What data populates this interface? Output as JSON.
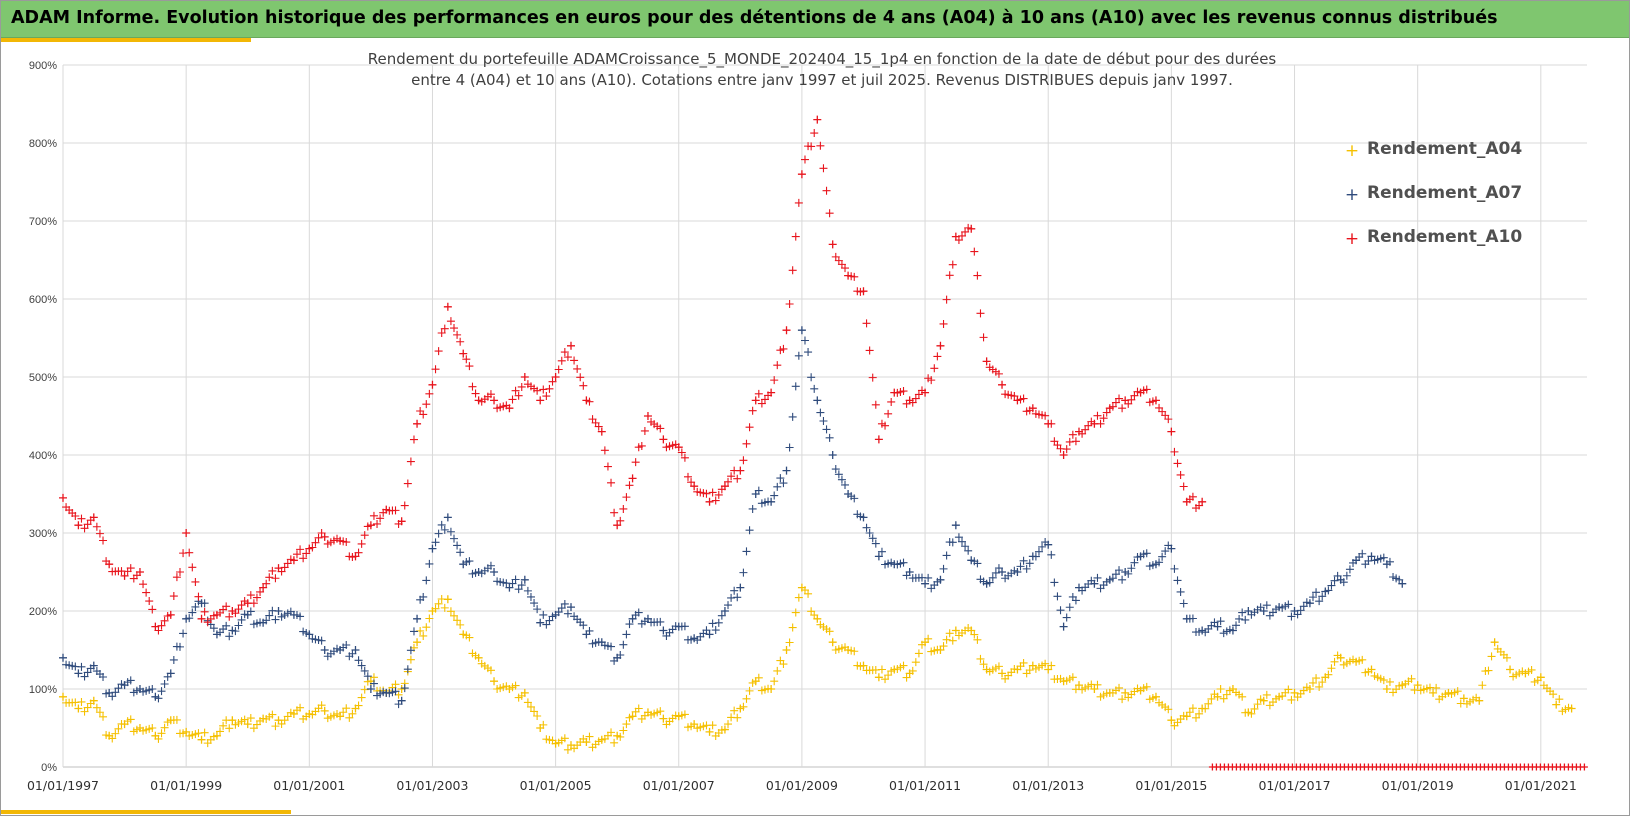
{
  "banner": {
    "title": "ADAM Informe. Evolution historique des performances en euros pour des détentions de 4 ans (A04) à 10 ans (A10) avec les revenus connus distribués"
  },
  "colors": {
    "banner": "#7fc66f",
    "accent": "#f2b705",
    "A04": "#f5c000",
    "A07": "#2f4b7c",
    "A10": "#e8141c"
  },
  "chart_data": {
    "type": "scatter",
    "marker": "plus",
    "title_lines": [
      "Rendement du portefeuille ADAMCroissance_5_MONDE_202404_15_1p4  en fonction de la date de début pour des durées",
      "entre 4 (A04) et 10 ans (A10). Cotations entre janv 1997 et juil 2025. Revenus DISTRIBUES depuis janv 1997."
    ],
    "xlim": [
      "1997-01-01",
      "2021-10-01"
    ],
    "ylim": [
      0,
      900
    ],
    "y_unit": "%",
    "y_ticks": [
      "0%",
      "100%",
      "200%",
      "300%",
      "400%",
      "500%",
      "600%",
      "700%",
      "800%",
      "900%"
    ],
    "x_tick_labels": [
      "01/01/1997",
      "01/01/1999",
      "01/01/2001",
      "01/01/2003",
      "01/01/2005",
      "01/01/2007",
      "01/01/2009",
      "01/01/2011",
      "01/01/2013",
      "01/01/2015",
      "01/01/2017",
      "01/01/2019",
      "01/01/2021"
    ],
    "grid": true,
    "legend_position": "top-right",
    "series": [
      {
        "name": "Rendement_A04",
        "points": [
          [
            "1997-01",
            90
          ],
          [
            "1997-04",
            75
          ],
          [
            "1997-07",
            85
          ],
          [
            "1997-10",
            40
          ],
          [
            "1998-01",
            55
          ],
          [
            "1998-04",
            50
          ],
          [
            "1998-07",
            40
          ],
          [
            "1998-10",
            60
          ],
          [
            "1999-01",
            45
          ],
          [
            "1999-04",
            35
          ],
          [
            "1999-07",
            40
          ],
          [
            "1999-10",
            60
          ],
          [
            "2000-01",
            55
          ],
          [
            "2000-04",
            62
          ],
          [
            "2000-07",
            60
          ],
          [
            "2000-10",
            68
          ],
          [
            "2001-01",
            68
          ],
          [
            "2001-04",
            72
          ],
          [
            "2001-07",
            65
          ],
          [
            "2001-10",
            75
          ],
          [
            "2002-01",
            110
          ],
          [
            "2002-04",
            95
          ],
          [
            "2002-07",
            100
          ],
          [
            "2002-10",
            160
          ],
          [
            "2003-01",
            200
          ],
          [
            "2003-04",
            215
          ],
          [
            "2003-07",
            170
          ],
          [
            "2003-10",
            140
          ],
          [
            "2004-01",
            110
          ],
          [
            "2004-04",
            100
          ],
          [
            "2004-07",
            95
          ],
          [
            "2004-10",
            50
          ],
          [
            "2005-01",
            30
          ],
          [
            "2005-04",
            28
          ],
          [
            "2005-07",
            32
          ],
          [
            "2005-10",
            35
          ],
          [
            "2006-01",
            40
          ],
          [
            "2006-04",
            65
          ],
          [
            "2006-07",
            70
          ],
          [
            "2006-10",
            62
          ],
          [
            "2007-01",
            65
          ],
          [
            "2007-04",
            55
          ],
          [
            "2007-07",
            45
          ],
          [
            "2007-10",
            48
          ],
          [
            "2008-01",
            75
          ],
          [
            "2008-04",
            110
          ],
          [
            "2008-07",
            100
          ],
          [
            "2008-10",
            150
          ],
          [
            "2009-01",
            230
          ],
          [
            "2009-04",
            190
          ],
          [
            "2009-07",
            160
          ],
          [
            "2009-10",
            150
          ],
          [
            "2010-01",
            130
          ],
          [
            "2010-04",
            115
          ],
          [
            "2010-07",
            125
          ],
          [
            "2010-10",
            120
          ],
          [
            "2011-01",
            160
          ],
          [
            "2011-04",
            150
          ],
          [
            "2011-07",
            175
          ],
          [
            "2011-10",
            175
          ],
          [
            "2012-01",
            125
          ],
          [
            "2012-04",
            120
          ],
          [
            "2012-07",
            125
          ],
          [
            "2012-10",
            130
          ],
          [
            "2013-01",
            125
          ],
          [
            "2013-04",
            110
          ],
          [
            "2013-07",
            105
          ],
          [
            "2013-10",
            100
          ],
          [
            "2014-01",
            95
          ],
          [
            "2014-04",
            95
          ],
          [
            "2014-07",
            98
          ],
          [
            "2014-10",
            90
          ],
          [
            "2015-01",
            60
          ],
          [
            "2015-04",
            65
          ],
          [
            "2015-07",
            75
          ],
          [
            "2015-10",
            90
          ],
          [
            "2016-01",
            100
          ],
          [
            "2016-04",
            70
          ],
          [
            "2016-07",
            85
          ],
          [
            "2016-10",
            90
          ],
          [
            "2017-01",
            95
          ],
          [
            "2017-04",
            100
          ],
          [
            "2017-07",
            115
          ],
          [
            "2017-10",
            140
          ],
          [
            "2018-01",
            135
          ],
          [
            "2018-04",
            125
          ],
          [
            "2018-07",
            100
          ],
          [
            "2018-10",
            105
          ],
          [
            "2019-01",
            105
          ],
          [
            "2019-04",
            95
          ],
          [
            "2019-07",
            95
          ],
          [
            "2019-10",
            88
          ],
          [
            "2020-01",
            85
          ],
          [
            "2020-04",
            160
          ],
          [
            "2020-07",
            125
          ],
          [
            "2020-10",
            120
          ],
          [
            "2021-01",
            115
          ],
          [
            "2021-04",
            80
          ],
          [
            "2021-07",
            75
          ]
        ]
      },
      {
        "name": "Rendement_A07",
        "points": [
          [
            "1997-01",
            140
          ],
          [
            "1997-04",
            120
          ],
          [
            "1997-07",
            130
          ],
          [
            "1997-10",
            95
          ],
          [
            "1998-01",
            105
          ],
          [
            "1998-04",
            100
          ],
          [
            "1998-07",
            90
          ],
          [
            "1998-10",
            120
          ],
          [
            "1999-01",
            190
          ],
          [
            "1999-04",
            210
          ],
          [
            "1999-07",
            170
          ],
          [
            "1999-10",
            175
          ],
          [
            "2000-01",
            195
          ],
          [
            "2000-04",
            185
          ],
          [
            "2000-07",
            200
          ],
          [
            "2000-10",
            195
          ],
          [
            "2001-01",
            170
          ],
          [
            "2001-04",
            150
          ],
          [
            "2001-07",
            150
          ],
          [
            "2001-10",
            150
          ],
          [
            "2002-01",
            100
          ],
          [
            "2002-04",
            95
          ],
          [
            "2002-07",
            85
          ],
          [
            "2002-10",
            190
          ],
          [
            "2003-01",
            280
          ],
          [
            "2003-04",
            320
          ],
          [
            "2003-07",
            260
          ],
          [
            "2003-10",
            250
          ],
          [
            "2004-01",
            250
          ],
          [
            "2004-04",
            230
          ],
          [
            "2004-07",
            240
          ],
          [
            "2004-10",
            185
          ],
          [
            "2005-01",
            195
          ],
          [
            "2005-04",
            205
          ],
          [
            "2005-07",
            170
          ],
          [
            "2005-10",
            160
          ],
          [
            "2006-01",
            140
          ],
          [
            "2006-04",
            190
          ],
          [
            "2006-07",
            190
          ],
          [
            "2006-10",
            175
          ],
          [
            "2007-01",
            180
          ],
          [
            "2007-04",
            165
          ],
          [
            "2007-07",
            170
          ],
          [
            "2007-10",
            200
          ],
          [
            "2008-01",
            230
          ],
          [
            "2008-04",
            350
          ],
          [
            "2008-07",
            340
          ],
          [
            "2008-10",
            380
          ],
          [
            "2009-01",
            560
          ],
          [
            "2009-04",
            470
          ],
          [
            "2009-07",
            400
          ],
          [
            "2009-10",
            350
          ],
          [
            "2010-01",
            320
          ],
          [
            "2010-04",
            270
          ],
          [
            "2010-07",
            260
          ],
          [
            "2010-10",
            250
          ],
          [
            "2011-01",
            235
          ],
          [
            "2011-04",
            240
          ],
          [
            "2011-07",
            310
          ],
          [
            "2011-10",
            265
          ],
          [
            "2012-01",
            235
          ],
          [
            "2012-04",
            250
          ],
          [
            "2012-07",
            250
          ],
          [
            "2012-10",
            270
          ],
          [
            "2013-01",
            285
          ],
          [
            "2013-04",
            180
          ],
          [
            "2013-07",
            230
          ],
          [
            "2013-10",
            235
          ],
          [
            "2014-01",
            240
          ],
          [
            "2014-04",
            250
          ],
          [
            "2014-07",
            270
          ],
          [
            "2014-10",
            260
          ],
          [
            "2015-01",
            280
          ],
          [
            "2015-04",
            190
          ],
          [
            "2015-07",
            175
          ],
          [
            "2015-10",
            180
          ],
          [
            "2016-01",
            175
          ],
          [
            "2016-04",
            200
          ],
          [
            "2016-07",
            200
          ],
          [
            "2016-10",
            205
          ],
          [
            "2017-01",
            200
          ],
          [
            "2017-04",
            210
          ],
          [
            "2017-07",
            225
          ],
          [
            "2017-10",
            240
          ],
          [
            "2018-01",
            265
          ],
          [
            "2018-04",
            270
          ],
          [
            "2018-07",
            260
          ],
          [
            "2018-10",
            235
          ]
        ]
      },
      {
        "name": "Rendement_A10",
        "points": [
          [
            "1997-01",
            345
          ],
          [
            "1997-04",
            310
          ],
          [
            "1997-07",
            320
          ],
          [
            "1997-10",
            260
          ],
          [
            "1998-01",
            245
          ],
          [
            "1998-04",
            250
          ],
          [
            "1998-07",
            180
          ],
          [
            "1998-10",
            195
          ],
          [
            "1999-01",
            300
          ],
          [
            "1999-04",
            190
          ],
          [
            "1999-07",
            195
          ],
          [
            "1999-10",
            200
          ],
          [
            "2000-01",
            210
          ],
          [
            "2000-04",
            230
          ],
          [
            "2000-07",
            255
          ],
          [
            "2000-10",
            265
          ],
          [
            "2001-01",
            280
          ],
          [
            "2001-04",
            295
          ],
          [
            "2001-07",
            290
          ],
          [
            "2001-10",
            270
          ],
          [
            "2002-01",
            310
          ],
          [
            "2002-04",
            330
          ],
          [
            "2002-07",
            315
          ],
          [
            "2002-10",
            440
          ],
          [
            "2003-01",
            490
          ],
          [
            "2003-04",
            590
          ],
          [
            "2003-07",
            530
          ],
          [
            "2003-10",
            470
          ],
          [
            "2004-01",
            470
          ],
          [
            "2004-04",
            460
          ],
          [
            "2004-07",
            500
          ],
          [
            "2004-10",
            470
          ],
          [
            "2005-01",
            500
          ],
          [
            "2005-04",
            540
          ],
          [
            "2005-07",
            470
          ],
          [
            "2005-10",
            430
          ],
          [
            "2006-01",
            310
          ],
          [
            "2006-04",
            370
          ],
          [
            "2006-07",
            450
          ],
          [
            "2006-10",
            420
          ],
          [
            "2007-01",
            410
          ],
          [
            "2007-04",
            360
          ],
          [
            "2007-07",
            340
          ],
          [
            "2007-10",
            360
          ],
          [
            "2008-01",
            380
          ],
          [
            "2008-04",
            470
          ],
          [
            "2008-07",
            480
          ],
          [
            "2008-10",
            560
          ],
          [
            "2009-01",
            760
          ],
          [
            "2009-04",
            830
          ],
          [
            "2009-07",
            670
          ],
          [
            "2009-10",
            630
          ],
          [
            "2010-01",
            610
          ],
          [
            "2010-04",
            420
          ],
          [
            "2010-07",
            480
          ],
          [
            "2010-10",
            470
          ],
          [
            "2011-01",
            480
          ],
          [
            "2011-04",
            540
          ],
          [
            "2011-07",
            680
          ],
          [
            "2011-10",
            690
          ],
          [
            "2012-01",
            520
          ],
          [
            "2012-04",
            490
          ],
          [
            "2012-07",
            470
          ],
          [
            "2012-10",
            460
          ],
          [
            "2013-01",
            440
          ],
          [
            "2013-04",
            400
          ],
          [
            "2013-07",
            430
          ],
          [
            "2013-10",
            440
          ],
          [
            "2014-01",
            460
          ],
          [
            "2014-04",
            470
          ],
          [
            "2014-07",
            480
          ],
          [
            "2014-10",
            470
          ],
          [
            "2015-01",
            430
          ],
          [
            "2015-04",
            340
          ],
          [
            "2015-07",
            340
          ]
        ]
      }
    ],
    "zero_band_series": "Rendement_A10",
    "zero_band_range": [
      "2015-09",
      "2021-10"
    ]
  }
}
